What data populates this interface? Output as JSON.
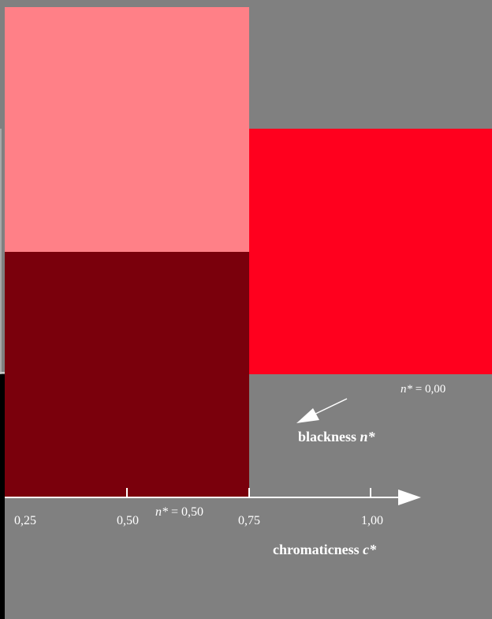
{
  "colors": {
    "background": "#808080",
    "light_red": "#ff8087",
    "red": "#ff001e",
    "dark_red": "#7a000c",
    "black": "#000000",
    "white": "#ffffff"
  },
  "axis": {
    "tick_labels": [
      "0,25",
      "0,50",
      "0,75",
      "1,00"
    ],
    "title_prefix": "chromaticness ",
    "title_var": "c*"
  },
  "annotations": {
    "n0_var": "n*",
    "n0_value": " = 0,00",
    "n50_var": "n*",
    "n50_value": " = 0,50",
    "blackness_prefix": "blackness ",
    "blackness_var": "n*"
  }
}
